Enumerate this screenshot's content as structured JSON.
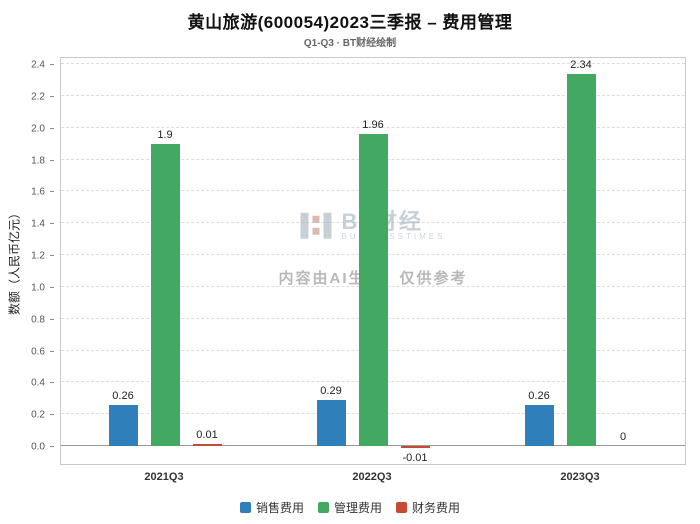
{
  "header": {
    "title": "黄山旅游(600054)2023三季报 – 费用管理",
    "subtitle": "Q1-Q3 · BT财经绘制"
  },
  "watermark": {
    "brand": "BT财经",
    "brand_sub": "BUSINESSTIMES",
    "notice": "内容由AI生成，仅供参考"
  },
  "chart_data": {
    "type": "bar",
    "title": "黄山旅游(600054)2023三季报 – 费用管理",
    "subtitle": "Q1-Q3 · BT财经绘制",
    "categories": [
      "2021Q3",
      "2022Q3",
      "2023Q3"
    ],
    "series": [
      {
        "name": "销售费用",
        "color": "#2f7fba",
        "values": [
          0.26,
          0.29,
          0.26
        ],
        "labels": [
          "0.26",
          "0.29",
          "0.26"
        ]
      },
      {
        "name": "管理费用",
        "color": "#42a862",
        "values": [
          1.9,
          1.96,
          2.34
        ],
        "labels": [
          "1.9",
          "1.96",
          "2.34"
        ]
      },
      {
        "name": "财务费用",
        "color": "#c74a32",
        "values": [
          0.01,
          -0.01,
          0
        ],
        "labels": [
          "0.01",
          "-0.01",
          "0"
        ]
      }
    ],
    "ylabel": "数额（人民币亿元）",
    "xlabel": "",
    "ylim": [
      0,
      2.4
    ],
    "ytick_step": 0.2,
    "grid": "dashed-horizontal",
    "legend_position": "bottom"
  }
}
